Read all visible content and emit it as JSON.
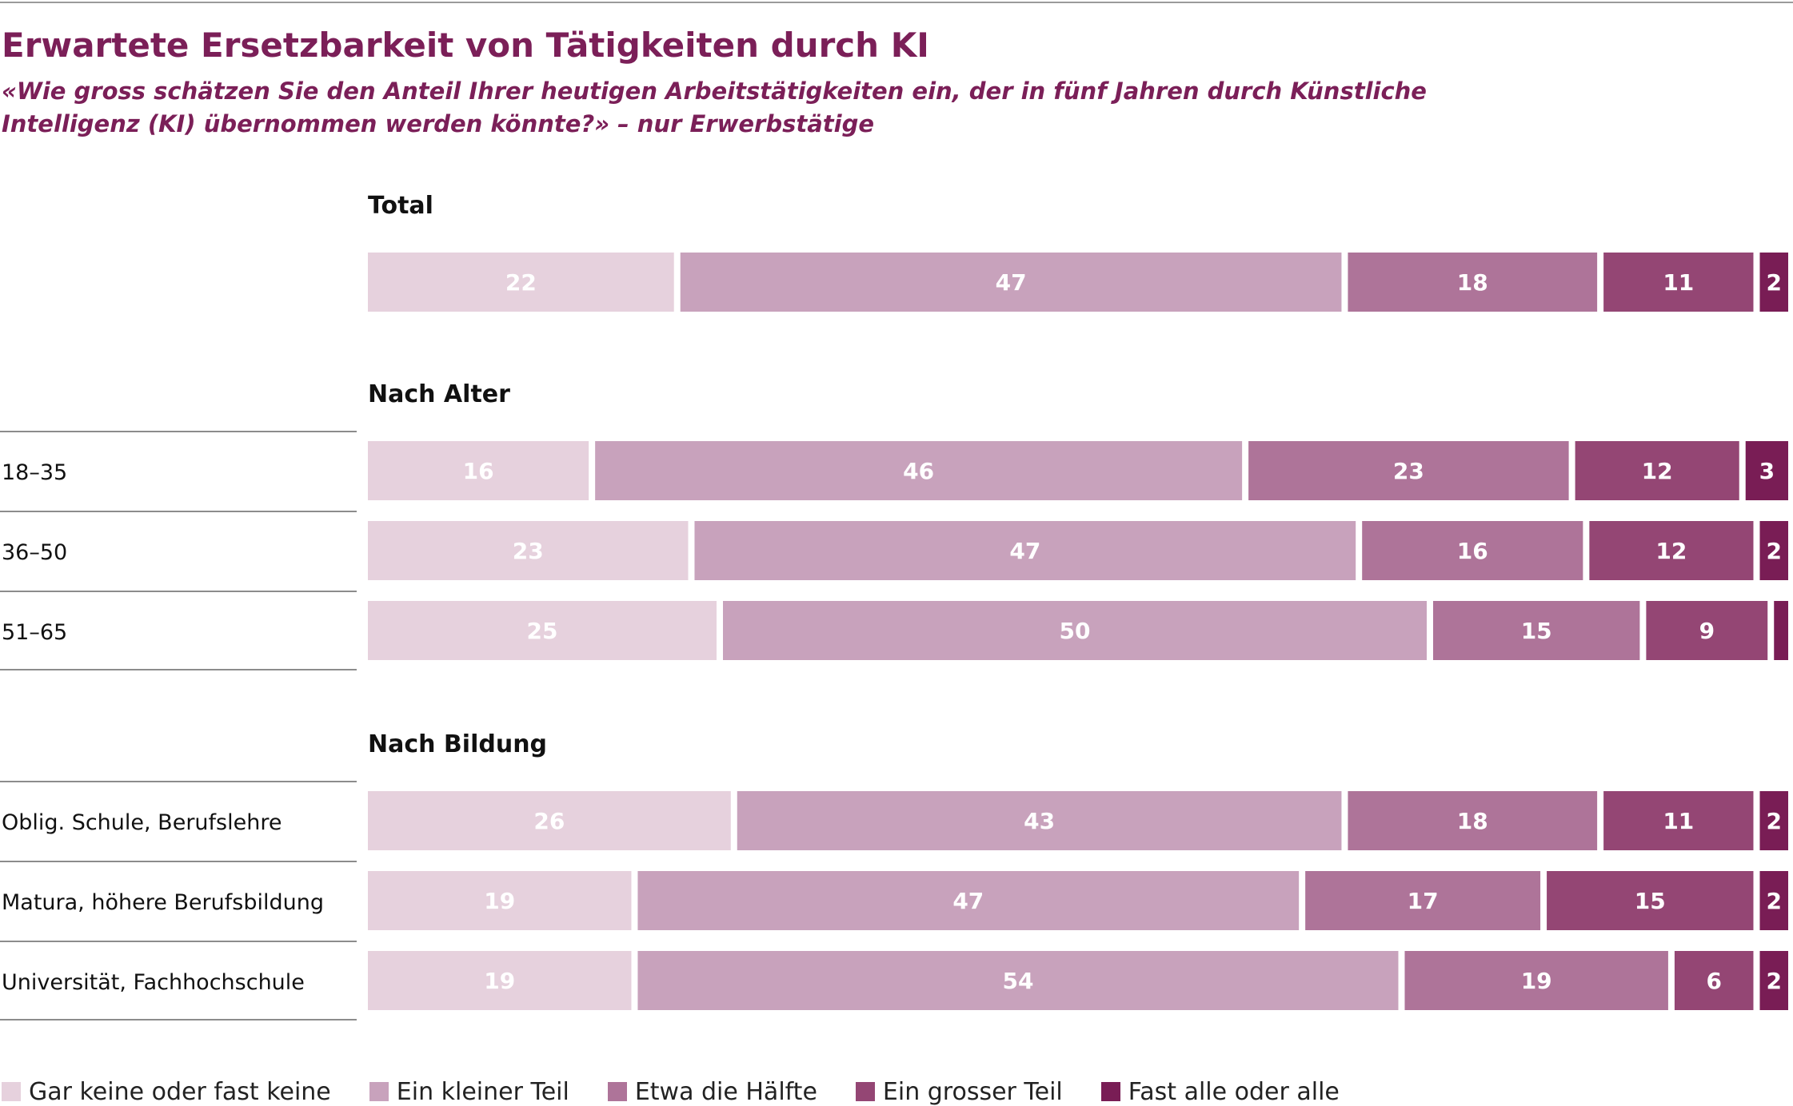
{
  "title": "Erwartete Ersetzbarkeit von Tätigkeiten durch KI",
  "subtitle": "«Wie gross schätzen Sie den Anteil Ihrer heutigen Arbeitstätigkeiten ein, der in fünf Jahren durch Künstliche Intelligenz (KI) übernommen werden könnte?» – nur Erwerbstätige",
  "chart_data": {
    "type": "bar",
    "orientation": "horizontal",
    "stacked": true,
    "xlim": [
      0,
      100
    ],
    "legend_position": "bottom",
    "series_names": [
      "Gar keine oder fast keine",
      "Ein kleiner Teil",
      "Etwa die Hälfte",
      "Ein grosser Teil",
      "Fast alle oder alle"
    ],
    "colors": [
      "#e6d1dd",
      "#c8a2bc",
      "#ae7499",
      "#944674",
      "#791d55"
    ],
    "groups": [
      {
        "label": "Total",
        "rows": [
          {
            "label": "",
            "values": [
              22,
              47,
              18,
              11,
              2
            ],
            "labels": [
              "22",
              "47",
              "18",
              "11",
              "2"
            ]
          }
        ]
      },
      {
        "label": "Nach Alter",
        "rows": [
          {
            "label": "18–35",
            "values": [
              16,
              46,
              23,
              12,
              3
            ],
            "labels": [
              "16",
              "46",
              "23",
              "12",
              "3"
            ]
          },
          {
            "label": "36–50",
            "values": [
              23,
              47,
              16,
              12,
              2
            ],
            "labels": [
              "23",
              "47",
              "16",
              "12",
              "2"
            ]
          },
          {
            "label": "51–65",
            "values": [
              25,
              50,
              15,
              9,
              1
            ],
            "labels": [
              "25",
              "50",
              "15",
              "9",
              ""
            ]
          }
        ]
      },
      {
        "label": "Nach Bildung",
        "rows": [
          {
            "label": "Oblig. Schule, Berufslehre",
            "values": [
              26,
              43,
              18,
              11,
              2
            ],
            "labels": [
              "26",
              "43",
              "18",
              "11",
              "2"
            ]
          },
          {
            "label": "Matura, höhere Berufsbildung",
            "values": [
              19,
              47,
              17,
              15,
              2
            ],
            "labels": [
              "19",
              "47",
              "17",
              "15",
              "2"
            ]
          },
          {
            "label": "Universität, Fachhochschule",
            "values": [
              19,
              54,
              19,
              6,
              2
            ],
            "labels": [
              "19",
              "54",
              "19",
              "6",
              "2"
            ]
          }
        ]
      }
    ]
  }
}
